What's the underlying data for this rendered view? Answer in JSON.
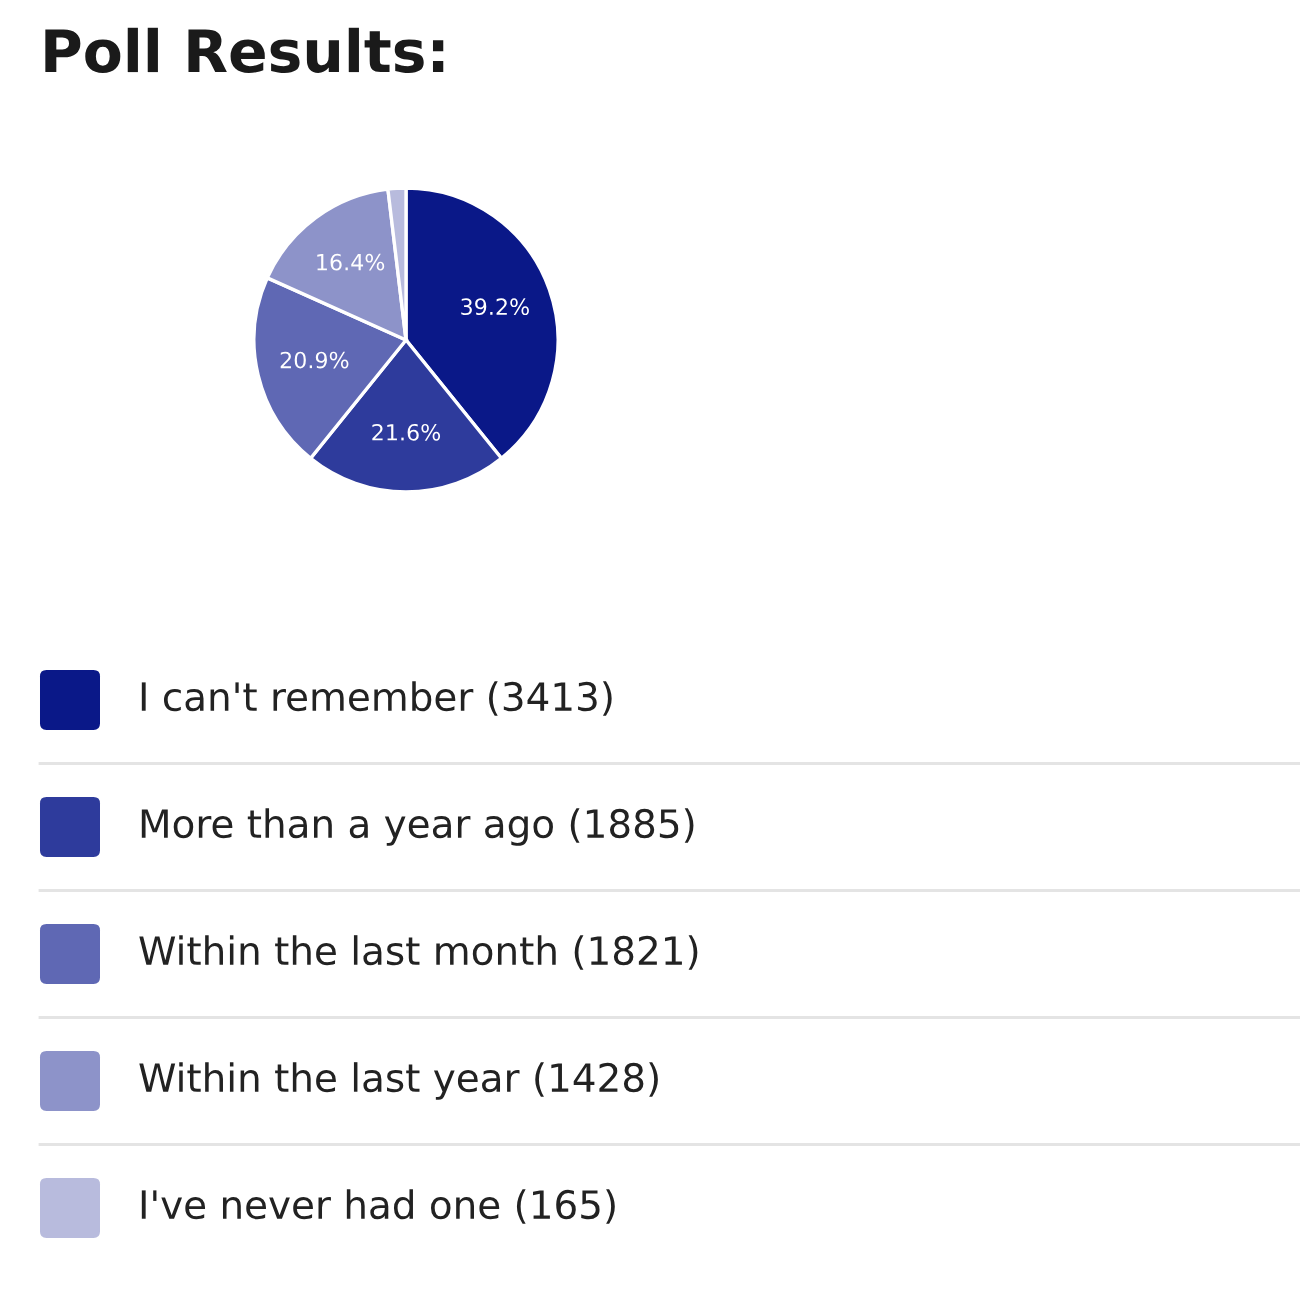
{
  "chart_data": {
    "type": "pie",
    "title": "Poll Results:",
    "categories": [
      "I can't remember (3413)",
      "More than a year ago (1885)",
      "Within the last month (1821)",
      "Within the last year (1428)",
      "I've never had one (165)"
    ],
    "values": [
      39.2,
      21.6,
      20.9,
      16.4,
      1.9
    ],
    "value_labels": [
      "39.2%",
      "21.6%",
      "20.9%",
      "16.4%",
      null
    ],
    "colors": [
      "#0a1888",
      "#2e3b9c",
      "#5f68b4",
      "#8d93c9",
      "#b8bbdd"
    ],
    "legend": "bottom"
  }
}
